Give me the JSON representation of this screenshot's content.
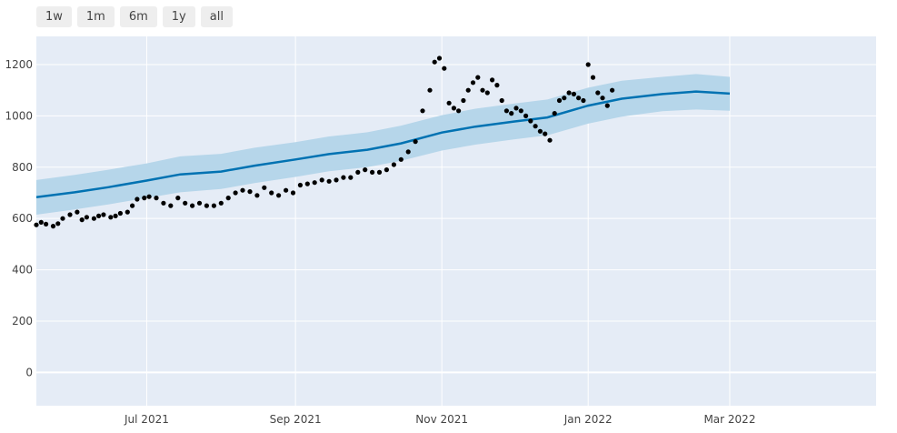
{
  "range_selector": {
    "buttons": [
      {
        "label": "1w"
      },
      {
        "label": "1m"
      },
      {
        "label": "6m"
      },
      {
        "label": "1y"
      },
      {
        "label": "all"
      }
    ]
  },
  "colors": {
    "plot_background": "#e5ecf6",
    "gridline": "#ffffff",
    "forecast_line": "#0072b2",
    "interval_band": "#b6d6ea",
    "observed_points": "#000000"
  },
  "chart_data": {
    "type": "line",
    "title": "",
    "xlabel": "",
    "ylabel": "",
    "x_range": [
      "2021-05-16",
      "2022-05-01"
    ],
    "ylim": [
      -130,
      1310
    ],
    "grid": true,
    "legend": "none",
    "x_ticks": [
      {
        "date": "2021-07-01",
        "label": "Jul 2021"
      },
      {
        "date": "2021-09-01",
        "label": "Sep 2021"
      },
      {
        "date": "2021-11-01",
        "label": "Nov 2021"
      },
      {
        "date": "2022-01-01",
        "label": "Jan 2022"
      },
      {
        "date": "2022-03-01",
        "label": "Mar 2022"
      }
    ],
    "y_ticks": [
      {
        "value": 0,
        "label": "0"
      },
      {
        "value": 200,
        "label": "200"
      },
      {
        "value": 400,
        "label": "400"
      },
      {
        "value": 600,
        "label": "600"
      },
      {
        "value": 800,
        "label": "800"
      },
      {
        "value": 1000,
        "label": "1000"
      },
      {
        "value": 1200,
        "label": "1200"
      }
    ],
    "forecast": {
      "x": [
        "2021-05-16",
        "2021-06-01",
        "2021-06-15",
        "2021-07-01",
        "2021-07-15",
        "2021-08-01",
        "2021-08-15",
        "2021-09-01",
        "2021-09-15",
        "2021-10-01",
        "2021-10-15",
        "2021-11-01",
        "2021-11-15",
        "2021-12-01",
        "2021-12-15",
        "2022-01-01",
        "2022-01-15",
        "2022-02-01",
        "2022-02-15",
        "2022-03-01"
      ],
      "y": [
        683,
        702,
        722,
        748,
        772,
        783,
        806,
        830,
        851,
        868,
        893,
        935,
        958,
        978,
        994,
        1040,
        1067,
        1085,
        1095,
        1087
      ],
      "lower": [
        615,
        635,
        655,
        680,
        702,
        715,
        738,
        762,
        784,
        800,
        825,
        865,
        888,
        908,
        924,
        970,
        997,
        1018,
        1025,
        1020
      ],
      "upper": [
        750,
        770,
        790,
        815,
        842,
        852,
        876,
        898,
        920,
        936,
        962,
        1003,
        1028,
        1048,
        1064,
        1110,
        1137,
        1152,
        1163,
        1152
      ]
    },
    "observed": {
      "x": [
        "2021-05-16",
        "2021-05-18",
        "2021-05-20",
        "2021-05-23",
        "2021-05-25",
        "2021-05-27",
        "2021-05-30",
        "2021-06-02",
        "2021-06-04",
        "2021-06-06",
        "2021-06-09",
        "2021-06-11",
        "2021-06-13",
        "2021-06-16",
        "2021-06-18",
        "2021-06-20",
        "2021-06-23",
        "2021-06-25",
        "2021-06-27",
        "2021-06-30",
        "2021-07-02",
        "2021-07-05",
        "2021-07-08",
        "2021-07-11",
        "2021-07-14",
        "2021-07-17",
        "2021-07-20",
        "2021-07-23",
        "2021-07-26",
        "2021-07-29",
        "2021-08-01",
        "2021-08-04",
        "2021-08-07",
        "2021-08-10",
        "2021-08-13",
        "2021-08-16",
        "2021-08-19",
        "2021-08-22",
        "2021-08-25",
        "2021-08-28",
        "2021-08-31",
        "2021-09-03",
        "2021-09-06",
        "2021-09-09",
        "2021-09-12",
        "2021-09-15",
        "2021-09-18",
        "2021-09-21",
        "2021-09-24",
        "2021-09-27",
        "2021-09-30",
        "2021-10-03",
        "2021-10-06",
        "2021-10-09",
        "2021-10-12",
        "2021-10-15",
        "2021-10-18",
        "2021-10-21",
        "2021-10-24",
        "2021-10-27",
        "2021-10-29",
        "2021-10-31",
        "2021-11-02",
        "2021-11-04",
        "2021-11-06",
        "2021-11-08",
        "2021-11-10",
        "2021-11-12",
        "2021-11-14",
        "2021-11-16",
        "2021-11-18",
        "2021-11-20",
        "2021-11-22",
        "2021-11-24",
        "2021-11-26",
        "2021-11-28",
        "2021-11-30",
        "2021-12-02",
        "2021-12-04",
        "2021-12-06",
        "2021-12-08",
        "2021-12-10",
        "2021-12-12",
        "2021-12-14",
        "2021-12-16",
        "2021-12-18",
        "2021-12-20",
        "2021-12-22",
        "2021-12-24",
        "2021-12-26",
        "2021-12-28",
        "2021-12-30",
        "2022-01-01",
        "2022-01-03",
        "2022-01-05",
        "2022-01-07",
        "2022-01-09",
        "2022-01-11"
      ],
      "y": [
        575,
        585,
        578,
        570,
        580,
        600,
        615,
        625,
        595,
        605,
        600,
        610,
        615,
        605,
        610,
        620,
        625,
        650,
        675,
        680,
        685,
        680,
        660,
        650,
        680,
        660,
        650,
        660,
        650,
        650,
        660,
        680,
        700,
        710,
        705,
        690,
        720,
        700,
        690,
        710,
        700,
        730,
        735,
        740,
        750,
        745,
        750,
        760,
        760,
        780,
        790,
        780,
        780,
        790,
        810,
        830,
        860,
        900,
        1020,
        1100,
        1210,
        1225,
        1185,
        1050,
        1030,
        1020,
        1060,
        1100,
        1130,
        1150,
        1100,
        1090,
        1140,
        1120,
        1060,
        1020,
        1010,
        1030,
        1020,
        1000,
        980,
        960,
        940,
        930,
        905,
        1010,
        1060,
        1070,
        1090,
        1085,
        1070,
        1060,
        1200,
        1150,
        1090,
        1070,
        1040,
        1100
      ]
    }
  }
}
